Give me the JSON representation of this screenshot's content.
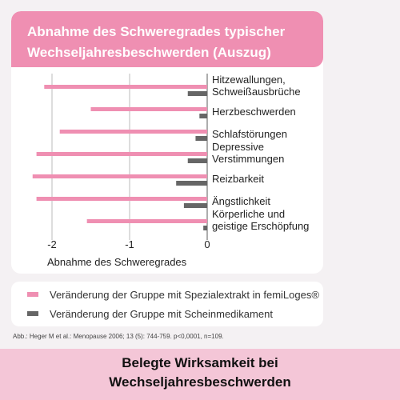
{
  "header": {
    "title_line1": "Abnahme des Schweregrades typischer",
    "title_line2": "Wechseljahresbeschwerden (Auszug)"
  },
  "chart_data": {
    "type": "bar",
    "orientation": "horizontal",
    "categories": [
      [
        "Hitzewallungen,",
        "Schweißausbrüche"
      ],
      [
        "Herzbeschwerden"
      ],
      [
        "Schlafstörungen"
      ],
      [
        "Depressive",
        "Verstimmungen"
      ],
      [
        "Reizbarkeit"
      ],
      [
        "Ängstlichkeit"
      ],
      [
        "Körperliche und",
        "geistige Erschöpfung"
      ]
    ],
    "series": [
      {
        "name": "Veränderung der Gruppe mit Spezialextrakt in femiLoges®",
        "color": "#ef8fb2",
        "values": [
          -2.1,
          -1.5,
          -1.9,
          -2.2,
          -2.25,
          -2.2,
          -1.55
        ]
      },
      {
        "name": "Veränderung der Gruppe mit Scheinmedikament",
        "color": "#666666",
        "values": [
          -0.25,
          -0.1,
          -0.15,
          -0.25,
          -0.4,
          -0.3,
          -0.05
        ]
      }
    ],
    "xlim": [
      -2.4,
      0
    ],
    "xticks": [
      -2,
      -1,
      0
    ],
    "xtick_labels": [
      "-2",
      "-1",
      "0"
    ],
    "xlabel": "Abnahme des Schweregrades",
    "grid": true,
    "legend_position": "bottom"
  },
  "legend": {
    "item1": "Veränderung der Gruppe mit Spezialextrakt in femiLoges®",
    "item2": "Veränderung der Gruppe mit Scheinmedikament"
  },
  "source": "Abb.: Heger M et al.: Menopause 2006; 13 (5): 744-759. p<0,0001, n=109.",
  "footer": {
    "line1": "Belegte Wirksamkeit bei",
    "line2": "Wechseljahresbeschwerden"
  }
}
